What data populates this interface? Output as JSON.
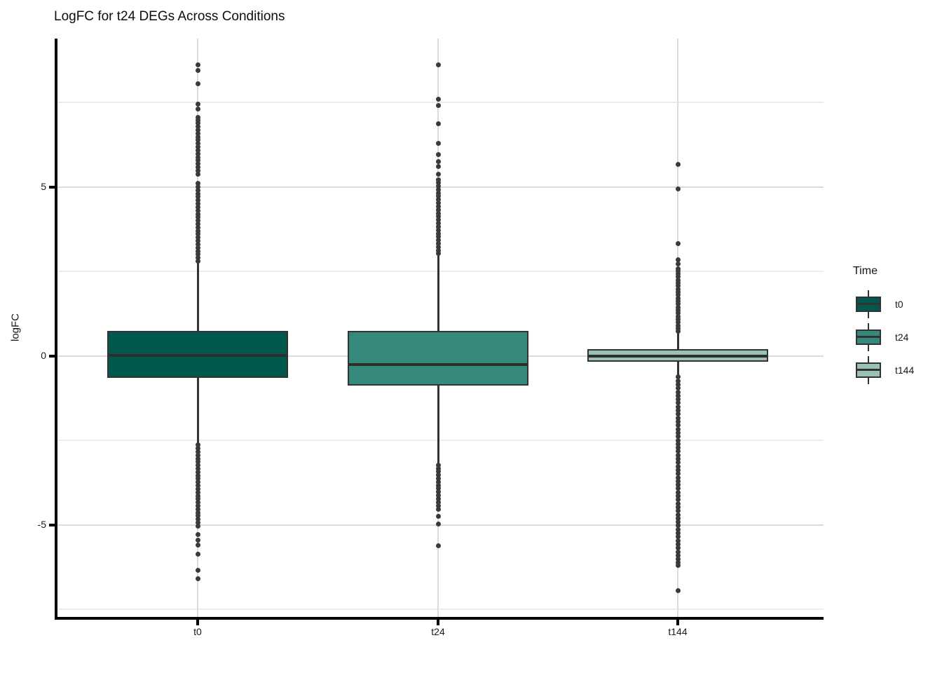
{
  "title": "LogFC for t24 DEGs Across Conditions",
  "chart_data": {
    "type": "boxplot",
    "title": "LogFC for t24 DEGs Across Conditions",
    "xlabel": "",
    "ylabel": "logFC",
    "categories": [
      "t0",
      "t24",
      "t144"
    ],
    "y_axis": {
      "major_ticks": [
        {
          "v": 5,
          "label": "5"
        },
        {
          "v": 0,
          "label": "0"
        },
        {
          "v": -5,
          "label": "-5"
        }
      ],
      "minor_ticks": [
        7.5,
        2.5,
        -2.5,
        -7.5
      ],
      "range_shown": [
        -7.8,
        9.4
      ],
      "grid": "horizontal-major-minor plus vertical category lines"
    },
    "legend": {
      "title": "Time",
      "position": "right",
      "entries": [
        {
          "label": "t0",
          "color": "#00594C"
        },
        {
          "label": "t24",
          "color": "#35897A"
        },
        {
          "label": "t144",
          "color": "#9BC1B3"
        }
      ]
    },
    "series": [
      {
        "name": "t0",
        "fill": "#00594C",
        "median": 0.02,
        "q1": -0.65,
        "q3": 0.73,
        "whisker_low": -2.64,
        "whisker_high": 2.79,
        "outliers_high": [
          2.8,
          2.9,
          3.0,
          3.1,
          3.2,
          3.3,
          3.4,
          3.5,
          3.6,
          3.7,
          3.8,
          3.9,
          4.0,
          4.1,
          4.2,
          4.3,
          4.4,
          4.5,
          4.6,
          4.7,
          4.8,
          4.9,
          5.0,
          5.1,
          5.38,
          5.48,
          5.58,
          5.68,
          5.78,
          5.88,
          5.98,
          6.08,
          6.18,
          6.28,
          6.38,
          6.48,
          6.58,
          6.68,
          6.78,
          6.88,
          6.98,
          7.05,
          7.3,
          7.45,
          8.05,
          8.45,
          8.62
        ],
        "outliers_low": [
          -2.64,
          -2.74,
          -2.84,
          -2.94,
          -3.04,
          -3.14,
          -3.24,
          -3.34,
          -3.44,
          -3.54,
          -3.64,
          -3.74,
          -3.84,
          -3.94,
          -4.04,
          -4.14,
          -4.24,
          -4.34,
          -4.44,
          -4.54,
          -4.64,
          -4.74,
          -4.84,
          -4.94,
          -5.04,
          -5.3,
          -5.45,
          -5.6,
          -5.88,
          -6.35,
          -6.6
        ]
      },
      {
        "name": "t24",
        "fill": "#35897A",
        "median": -0.26,
        "q1": -0.88,
        "q3": 0.73,
        "whisker_low": -3.23,
        "whisker_high": 3.02,
        "outliers_high": [
          3.02,
          3.12,
          3.22,
          3.32,
          3.42,
          3.52,
          3.62,
          3.72,
          3.82,
          3.92,
          4.02,
          4.12,
          4.22,
          4.32,
          4.42,
          4.52,
          4.62,
          4.72,
          4.82,
          4.92,
          5.02,
          5.12,
          5.2,
          5.38,
          5.6,
          5.75,
          5.95,
          6.28,
          6.86,
          7.4,
          7.6,
          8.62
        ],
        "outliers_low": [
          -3.23,
          -3.33,
          -3.43,
          -3.53,
          -3.63,
          -3.73,
          -3.83,
          -3.93,
          -4.03,
          -4.13,
          -4.23,
          -4.33,
          -4.43,
          -4.55,
          -4.75,
          -4.98,
          -5.63
        ]
      },
      {
        "name": "t144",
        "fill": "#9BC1B3",
        "median": -0.02,
        "q1": -0.18,
        "q3": 0.19,
        "whisker_low": -0.63,
        "whisker_high": 0.72,
        "outliers_high": [
          0.72,
          0.81,
          0.9,
          0.99,
          1.08,
          1.17,
          1.26,
          1.35,
          1.44,
          1.53,
          1.62,
          1.71,
          1.8,
          1.89,
          1.98,
          2.07,
          2.16,
          2.25,
          2.34,
          2.43,
          2.52,
          2.58,
          2.72,
          2.85,
          3.31,
          4.93,
          5.67
        ],
        "outliers_low": [
          -0.63,
          -0.74,
          -0.85,
          -0.96,
          -1.07,
          -1.18,
          -1.29,
          -1.4,
          -1.51,
          -1.62,
          -1.73,
          -1.84,
          -1.95,
          -2.06,
          -2.17,
          -2.28,
          -2.39,
          -2.5,
          -2.61,
          -2.72,
          -2.83,
          -2.94,
          -3.05,
          -3.16,
          -3.27,
          -3.38,
          -3.49,
          -3.6,
          -3.71,
          -3.82,
          -3.93,
          -4.04,
          -4.15,
          -4.26,
          -4.37,
          -4.48,
          -4.59,
          -4.7,
          -4.81,
          -4.92,
          -5.03,
          -5.14,
          -5.25,
          -5.36,
          -5.47,
          -5.58,
          -5.69,
          -5.8,
          -5.91,
          -6.02,
          -6.13,
          -6.2,
          -6.94
        ]
      }
    ],
    "style": {
      "box_border_color": "#333333",
      "median_color": "#2e2e2e",
      "whisker_color": "#333333",
      "outlier_dot_color": "#3a3a3a",
      "grid_major_color": "#dbdbdb",
      "grid_minor_color": "#ececec",
      "axis_color": "#000000",
      "background": "#ffffff"
    }
  }
}
